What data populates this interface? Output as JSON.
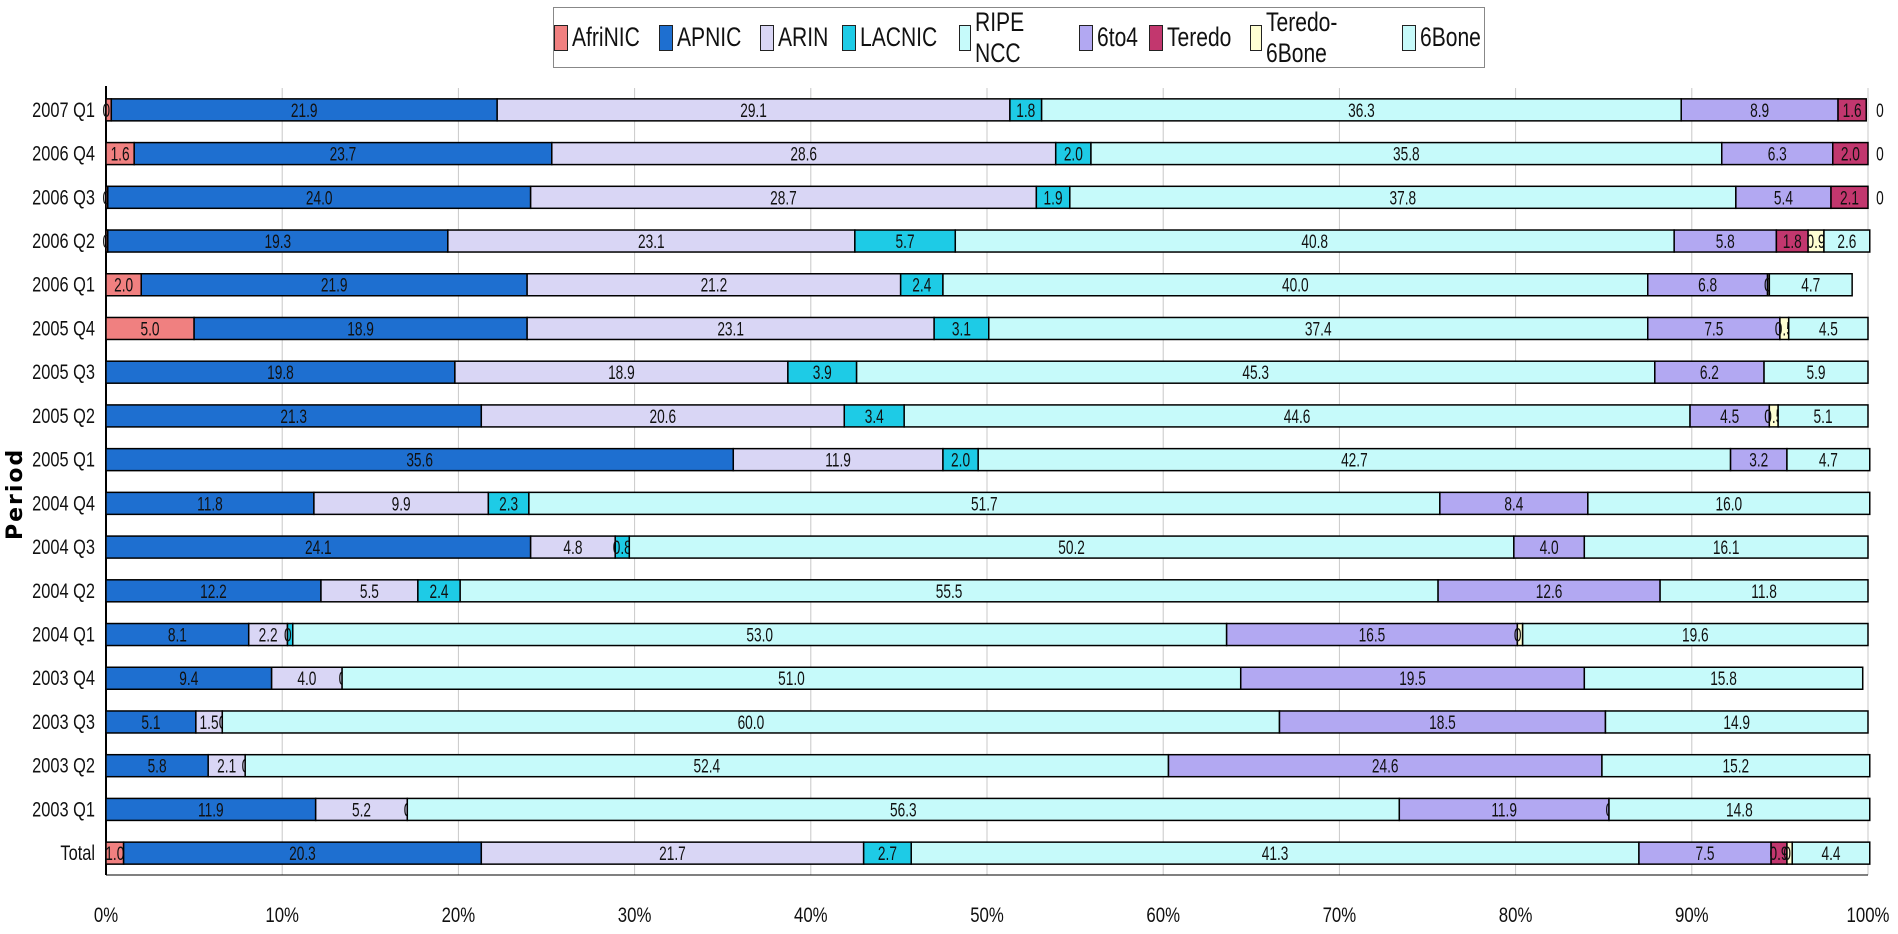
{
  "chart_data": {
    "type": "bar",
    "orientation": "horizontal",
    "stacked": "percent",
    "ylabel": "Period",
    "xlabel": "",
    "xlim": [
      0,
      100
    ],
    "x_ticks": [
      "0%",
      "10%",
      "20%",
      "30%",
      "40%",
      "50%",
      "60%",
      "70%",
      "80%",
      "90%",
      "100%"
    ],
    "legend_position": "top",
    "grid": true,
    "categories": [
      "2007 Q1",
      "2006 Q4",
      "2006 Q3",
      "2006 Q2",
      "2006 Q1",
      "2005 Q4",
      "2005 Q3",
      "2005 Q2",
      "2005 Q1",
      "2004 Q4",
      "2004 Q3",
      "2004 Q2",
      "2004 Q1",
      "2003 Q4",
      "2003 Q3",
      "2003 Q2",
      "2003 Q1",
      "Total"
    ],
    "series": [
      {
        "name": "AfriNIC",
        "color": "#f08080",
        "values": [
          0.3,
          1.6,
          0.1,
          0.1,
          2.0,
          5.0,
          0.0,
          0.0,
          0.0,
          0.0,
          0.0,
          0.0,
          0.0,
          0.0,
          0.0,
          0.0,
          0.0,
          1.0
        ]
      },
      {
        "name": "APNIC",
        "color": "#1e6fd0",
        "values": [
          21.9,
          23.7,
          24.0,
          19.3,
          21.9,
          18.9,
          19.8,
          21.3,
          35.6,
          11.8,
          24.1,
          12.2,
          8.1,
          9.4,
          5.1,
          5.8,
          11.9,
          20.3
        ]
      },
      {
        "name": "ARIN",
        "color": "#d9d6f5",
        "values": [
          29.1,
          28.6,
          28.7,
          23.1,
          21.2,
          23.1,
          18.9,
          20.6,
          11.9,
          9.9,
          4.8,
          5.5,
          2.2,
          4.0,
          1.5,
          2.1,
          5.2,
          21.7
        ]
      },
      {
        "name": "LACNIC",
        "color": "#1ecbe6",
        "values": [
          1.8,
          2.0,
          1.9,
          5.7,
          2.4,
          3.1,
          3.9,
          3.4,
          2.0,
          2.3,
          0.8,
          2.4,
          0.3,
          0.0,
          0.0,
          0.0,
          0.0,
          2.7
        ]
      },
      {
        "name": "RIPE NCC",
        "color": "#c6fafa",
        "values": [
          36.3,
          35.8,
          37.8,
          40.8,
          40.0,
          37.4,
          45.3,
          44.6,
          42.7,
          51.7,
          50.2,
          55.5,
          53.0,
          51.0,
          60.0,
          52.4,
          56.3,
          41.3
        ]
      },
      {
        "name": "6to4",
        "color": "#b2a8f2",
        "values": [
          8.9,
          6.3,
          5.4,
          5.8,
          6.8,
          7.5,
          6.2,
          4.5,
          3.2,
          8.4,
          4.0,
          12.6,
          16.5,
          19.5,
          18.5,
          24.6,
          11.9,
          7.5
        ]
      },
      {
        "name": "Teredo",
        "color": "#c2376e",
        "values": [
          1.6,
          2.0,
          2.1,
          1.8,
          0.0,
          0.0,
          0.0,
          0.0,
          0.0,
          0.0,
          0.0,
          0.0,
          0.0,
          0.0,
          0.0,
          0.0,
          0.0,
          0.9
        ]
      },
      {
        "name": "Teredo-6Bone",
        "color": "#fefed2",
        "values": [
          0.0,
          0.0,
          0.0,
          0.9,
          0.1,
          0.5,
          0.0,
          0.5,
          0.0,
          0.0,
          0.0,
          0.0,
          0.3,
          0.0,
          0.0,
          0.0,
          0.0,
          0.3
        ]
      },
      {
        "name": "6Bone",
        "color": "#c6fafa",
        "values": [
          0.0,
          0.0,
          0.0,
          2.6,
          4.7,
          4.5,
          5.9,
          5.1,
          4.7,
          16.0,
          16.1,
          11.8,
          19.6,
          15.8,
          14.9,
          15.2,
          14.8,
          4.4
        ]
      }
    ],
    "data_labels": [
      [
        "0.3",
        "21.9",
        "29.1",
        "1.8",
        "36.3",
        "8.9",
        "1.6",
        "",
        "0"
      ],
      [
        "1.6",
        "23.7",
        "28.6",
        "2.0",
        "35.8",
        "6.3",
        "2.0",
        "",
        "0"
      ],
      [
        "0.1",
        "24.0",
        "28.7",
        "1.9",
        "37.8",
        "5.4",
        "2.1",
        "",
        "0"
      ],
      [
        "0.1",
        "19.3",
        "23.1",
        "5.7",
        "40.8",
        "5.8",
        "1.8",
        "0.9",
        "2.6"
      ],
      [
        "2.0",
        "21.9",
        "21.2",
        "2.4",
        "40.0",
        "6.8",
        "",
        "0.1",
        "4.7"
      ],
      [
        "5.0",
        "18.9",
        "23.1",
        "3.1",
        "37.4",
        "7.5",
        "",
        "0.5",
        "4.5"
      ],
      [
        "",
        "19.8",
        "18.9",
        "3.9",
        "45.3",
        "6.2",
        "",
        "0",
        "5.9"
      ],
      [
        "",
        "21.3",
        "20.6",
        "3.4",
        "44.6",
        "4.5",
        "",
        "0.5",
        "5.1"
      ],
      [
        "",
        "35.6",
        "11.9",
        "2.0",
        "42.7",
        "3.2",
        "",
        "0",
        "4.7"
      ],
      [
        "",
        "11.8",
        "9.9",
        "2.3",
        "51.7",
        "8.4",
        "",
        "0",
        "16.0"
      ],
      [
        "",
        "24.1",
        "4.8",
        "0.8",
        "50.2",
        "4.0",
        "",
        "0",
        "16.1"
      ],
      [
        "",
        "12.2",
        "5.5",
        "2.4",
        "55.5",
        "12.6",
        "",
        "0",
        "11.8"
      ],
      [
        "",
        "8.1",
        "2.2",
        "0.3",
        "53.0",
        "16.5",
        "",
        "0.3",
        "19.6"
      ],
      [
        "",
        "9.4",
        "4.0",
        "0.0",
        "51.0",
        "19.5",
        "",
        "0",
        "15.8"
      ],
      [
        "",
        "5.1",
        "1.5",
        "0.0",
        "60.0",
        "18.5",
        "",
        "0",
        "14.9"
      ],
      [
        "",
        "5.8",
        "2.1",
        "0.0",
        "52.4",
        "24.6",
        "",
        "0",
        "15.2"
      ],
      [
        "",
        "11.9",
        "5.2",
        "0.0",
        "56.3",
        "11.9",
        "",
        "0.0",
        "14.8"
      ],
      [
        "1.0",
        "20.3",
        "21.7",
        "2.7",
        "41.3",
        "7.5",
        "0.9",
        "0.3",
        "4.4"
      ]
    ]
  }
}
